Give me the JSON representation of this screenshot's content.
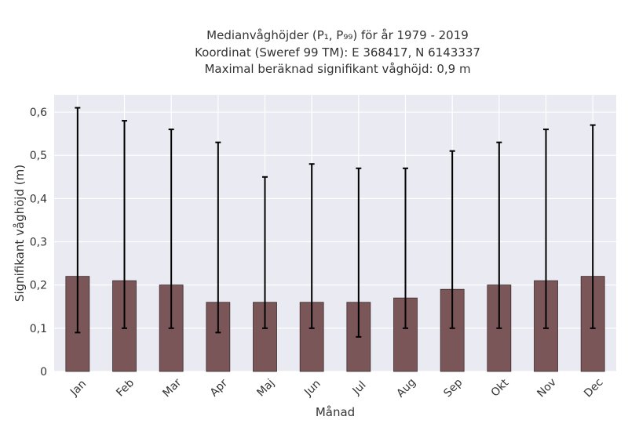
{
  "chart_data": {
    "type": "bar",
    "title_lines": [
      "Medianvåghöjder (P₁, P₉₉) för år 1979 - 2019",
      "Koordinat (Sweref 99 TM): E 368417, N 6143337",
      "Maximal beräknad signifikant våghöjd: 0,9 m"
    ],
    "xlabel": "Månad",
    "ylabel": "Signifikant våghöjd (m)",
    "categories": [
      "Jan",
      "Feb",
      "Mar",
      "Apr",
      "Maj",
      "Jun",
      "Jul",
      "Aug",
      "Sep",
      "Okt",
      "Nov",
      "Dec"
    ],
    "values": [
      0.22,
      0.21,
      0.2,
      0.16,
      0.16,
      0.16,
      0.16,
      0.17,
      0.19,
      0.2,
      0.21,
      0.22
    ],
    "error_low": [
      0.09,
      0.1,
      0.1,
      0.09,
      0.1,
      0.1,
      0.08,
      0.1,
      0.1,
      0.1,
      0.1,
      0.1
    ],
    "error_high": [
      0.61,
      0.58,
      0.56,
      0.53,
      0.45,
      0.48,
      0.47,
      0.47,
      0.51,
      0.53,
      0.56,
      0.57
    ],
    "ylim": [
      0,
      0.64
    ],
    "yticks": [
      0,
      0.1,
      0.2,
      0.3,
      0.4,
      0.5,
      0.6
    ],
    "ytick_labels": [
      "0",
      "0,1",
      "0,2",
      "0,3",
      "0,4",
      "0,5",
      "0,6"
    ],
    "grid": true,
    "colors": {
      "bar": "#7b5659",
      "bar_edge": "#3a2c2d",
      "plot_bg": "#eaeaf2",
      "grid": "#ffffff",
      "error": "#000000"
    }
  }
}
